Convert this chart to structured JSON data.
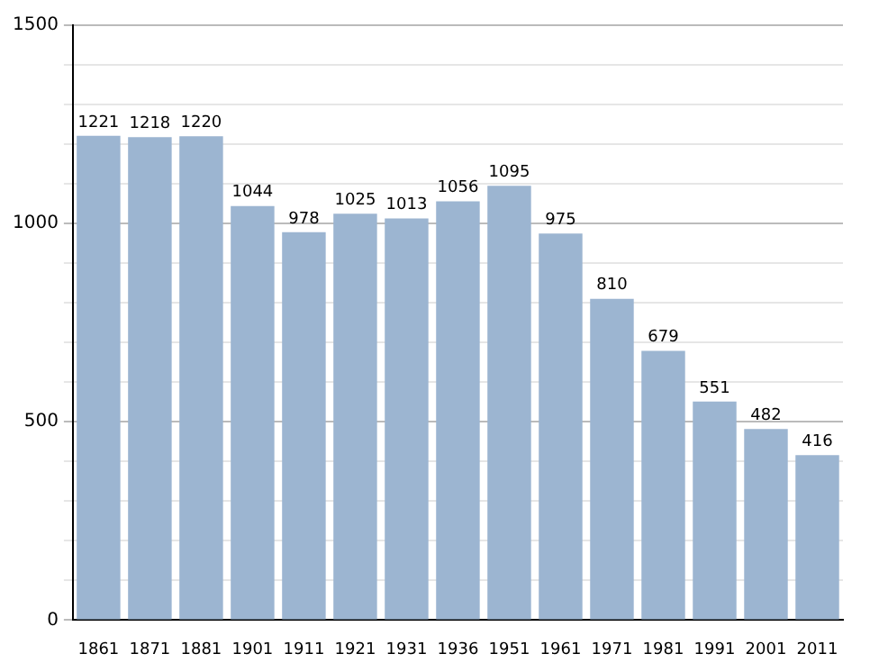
{
  "chart_data": {
    "type": "bar",
    "categories": [
      "1861",
      "1871",
      "1881",
      "1901",
      "1911",
      "1921",
      "1931",
      "1936",
      "1951",
      "1961",
      "1971",
      "1981",
      "1991",
      "2001",
      "2011"
    ],
    "values": [
      1221,
      1218,
      1220,
      1044,
      978,
      1025,
      1013,
      1056,
      1095,
      975,
      810,
      679,
      551,
      482,
      416
    ],
    "color": "#9cb5d1",
    "ylim": [
      0,
      1500
    ],
    "yticks": [
      0,
      {
        "value": 100,
        "label": null
      },
      {
        "value": 200,
        "label": null
      },
      {
        "value": 300,
        "label": null
      },
      {
        "value": 400,
        "label": null
      },
      500,
      {
        "value": 600,
        "label": null
      },
      {
        "value": 700,
        "label": null
      },
      {
        "value": 800,
        "label": null
      },
      {
        "value": 900,
        "label": null
      },
      1000,
      {
        "value": 1100,
        "label": null
      },
      {
        "value": 1200,
        "label": null
      },
      {
        "value": 1300,
        "label": null
      },
      {
        "value": 1400,
        "label": null
      },
      1500
    ],
    "grid": "y",
    "data_labels": true,
    "legend": false
  }
}
